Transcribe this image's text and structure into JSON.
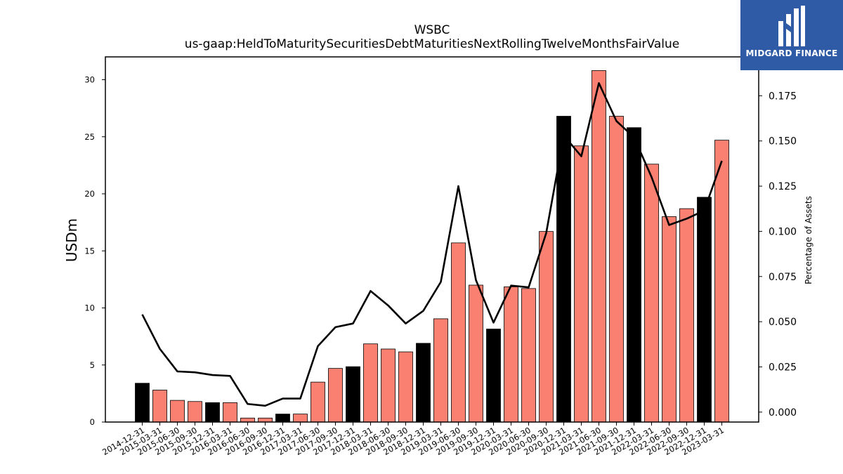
{
  "logo": {
    "text": "MIDGARD FINANCE"
  },
  "chart_data": {
    "type": "bar",
    "title": "WSBC",
    "subtitle": "us-gaap:HeldToMaturitySecuritiesDebtMaturitiesNextRollingTwelveMonthsFairValue",
    "ylabel": "USDm",
    "ylabel_right": "Percentage of Assets",
    "ylim": [
      0,
      32
    ],
    "ylim_right": [
      -0.0055,
      0.1965
    ],
    "yticks": [
      0,
      5,
      10,
      15,
      20,
      25,
      30
    ],
    "yticks_right": [
      "0.000",
      "0.025",
      "0.050",
      "0.075",
      "0.100",
      "0.125",
      "0.150",
      "0.175"
    ],
    "colors": {
      "annual": "#000000",
      "quarter": "#fa8072",
      "line": "#000000"
    },
    "categories": [
      "2014-12-31",
      "2015-03-31",
      "2015-06-30",
      "2015-09-30",
      "2015-12-31",
      "2016-03-31",
      "2016-06-30",
      "2016-09-30",
      "2016-12-31",
      "2017-03-31",
      "2017-06-30",
      "2017-09-30",
      "2017-12-31",
      "2018-03-31",
      "2018-06-30",
      "2018-09-30",
      "2018-12-31",
      "2019-03-31",
      "2019-06-30",
      "2019-09-30",
      "2019-12-31",
      "2020-03-31",
      "2020-06-30",
      "2020-09-30",
      "2020-12-31",
      "2021-03-31",
      "2021-06-30",
      "2021-09-30",
      "2021-12-31",
      "2022-03-31",
      "2022-06-30",
      "2022-09-30",
      "2022-12-31",
      "2023-03-31"
    ],
    "series": [
      {
        "type": "bar",
        "values": [
          3.4,
          2.8,
          1.9,
          1.8,
          1.7,
          1.7,
          0.35,
          0.35,
          0.7,
          0.7,
          3.5,
          4.7,
          4.85,
          6.85,
          6.4,
          6.15,
          6.9,
          9.05,
          15.7,
          12.0,
          8.15,
          11.85,
          11.7,
          16.7,
          26.8,
          24.2,
          30.8,
          26.8,
          25.8,
          22.6,
          18.0,
          18.7,
          19.7,
          24.7
        ]
      },
      {
        "type": "line",
        "values": [
          0.054,
          0.035,
          0.0225,
          0.022,
          0.0205,
          0.02,
          0.0045,
          0.0035,
          0.0075,
          0.0075,
          0.0365,
          0.047,
          0.049,
          0.067,
          0.059,
          0.049,
          0.056,
          0.072,
          0.125,
          0.073,
          0.0495,
          0.07,
          0.069,
          0.099,
          0.153,
          0.1415,
          0.182,
          0.161,
          0.152,
          0.13,
          0.1035,
          0.107,
          0.1115,
          0.139
        ]
      }
    ]
  }
}
